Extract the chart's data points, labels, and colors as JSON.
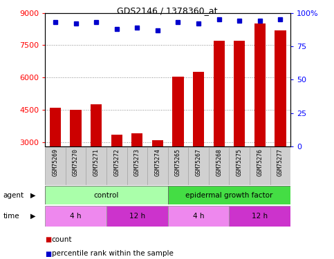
{
  "title": "GDS2146 / 1378360_at",
  "samples": [
    "GSM75269",
    "GSM75270",
    "GSM75271",
    "GSM75272",
    "GSM75273",
    "GSM75274",
    "GSM75265",
    "GSM75267",
    "GSM75268",
    "GSM75275",
    "GSM75276",
    "GSM75277"
  ],
  "counts": [
    4600,
    4500,
    4750,
    3350,
    3400,
    3100,
    6050,
    6250,
    7700,
    7700,
    8500,
    8200
  ],
  "percentiles": [
    93,
    92,
    93,
    88,
    89,
    87,
    93,
    92,
    95,
    94,
    94,
    95
  ],
  "ylim_left": [
    2800,
    9000
  ],
  "ylim_right": [
    0,
    100
  ],
  "yticks_left": [
    3000,
    4500,
    6000,
    7500,
    9000
  ],
  "yticks_right": [
    0,
    25,
    50,
    75,
    100
  ],
  "bar_color": "#cc0000",
  "dot_color": "#0000cc",
  "agent_groups": [
    {
      "label": "control",
      "start": 0,
      "end": 6,
      "color": "#aaffaa"
    },
    {
      "label": "epidermal growth factor",
      "start": 6,
      "end": 12,
      "color": "#44dd44"
    }
  ],
  "time_groups": [
    {
      "label": "4 h",
      "start": 0,
      "end": 3,
      "color": "#ee88ee"
    },
    {
      "label": "12 h",
      "start": 3,
      "end": 6,
      "color": "#cc33cc"
    },
    {
      "label": "4 h",
      "start": 6,
      "end": 9,
      "color": "#ee88ee"
    },
    {
      "label": "12 h",
      "start": 9,
      "end": 12,
      "color": "#cc33cc"
    }
  ],
  "grid_color": "#888888",
  "plot_bg": "#ffffff",
  "label_box_color": "#d0d0d0",
  "label_box_edge": "#aaaaaa"
}
